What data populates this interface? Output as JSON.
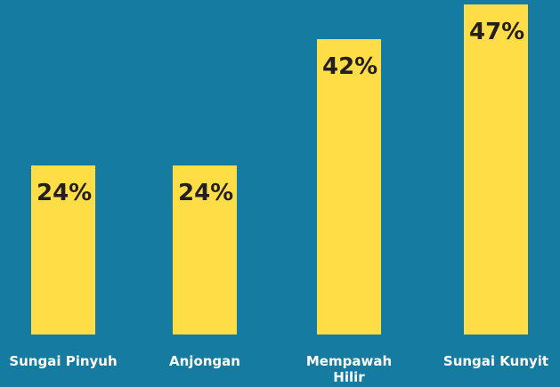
{
  "chart_data": {
    "type": "bar",
    "categories": [
      "Sungai Pinyuh",
      "Anjongan",
      "Mempawah Hilir",
      "Sungai Kunyit"
    ],
    "values": [
      24,
      24,
      42,
      47
    ],
    "value_labels": [
      "24%",
      "24%",
      "42%",
      "47%"
    ],
    "color": "#fedd47"
  }
}
